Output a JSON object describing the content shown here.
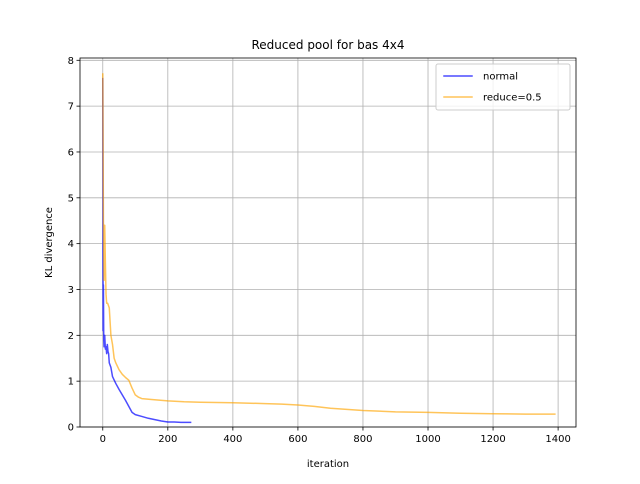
{
  "chart_data": {
    "type": "line",
    "title": "Reduced pool for bas 4x4",
    "xlabel": "iteration",
    "ylabel": "KL divergence",
    "xlim": [
      -70,
      1455
    ],
    "ylim": [
      0,
      8.05
    ],
    "xticks": [
      0,
      200,
      400,
      600,
      800,
      1000,
      1200,
      1400
    ],
    "yticks": [
      0,
      1,
      2,
      3,
      4,
      5,
      6,
      7,
      8
    ],
    "grid": true,
    "legend_position": "upper-right",
    "series": [
      {
        "name": "normal",
        "color": "#0000ff",
        "x": [
          0,
          1,
          2,
          3,
          4,
          5,
          6,
          8,
          10,
          12,
          14,
          16,
          18,
          20,
          25,
          30,
          40,
          50,
          60,
          70,
          80,
          90,
          100,
          120,
          140,
          160,
          180,
          200,
          220,
          240,
          270
        ],
        "y": [
          7.6,
          2.1,
          3.1,
          1.9,
          1.75,
          1.8,
          2.0,
          1.7,
          1.75,
          1.6,
          1.8,
          1.65,
          1.6,
          1.4,
          1.3,
          1.1,
          0.95,
          0.82,
          0.7,
          0.58,
          0.45,
          0.32,
          0.27,
          0.23,
          0.19,
          0.16,
          0.13,
          0.11,
          0.11,
          0.1,
          0.1
        ]
      },
      {
        "name": "reduce=0.5",
        "color": "#ffa500",
        "x": [
          0,
          2,
          4,
          6,
          8,
          10,
          12,
          15,
          20,
          25,
          30,
          35,
          40,
          50,
          60,
          70,
          80,
          90,
          100,
          110,
          120,
          150,
          200,
          250,
          300,
          400,
          500,
          550,
          600,
          650,
          700,
          800,
          900,
          1000,
          1100,
          1200,
          1300,
          1390
        ],
        "y": [
          7.7,
          4.5,
          3.2,
          4.4,
          3.6,
          2.9,
          2.7,
          2.7,
          2.6,
          2.0,
          1.8,
          1.5,
          1.4,
          1.25,
          1.15,
          1.08,
          1.02,
          0.85,
          0.7,
          0.65,
          0.62,
          0.6,
          0.57,
          0.55,
          0.54,
          0.53,
          0.51,
          0.5,
          0.48,
          0.45,
          0.41,
          0.36,
          0.33,
          0.32,
          0.3,
          0.29,
          0.28,
          0.28
        ]
      }
    ]
  }
}
